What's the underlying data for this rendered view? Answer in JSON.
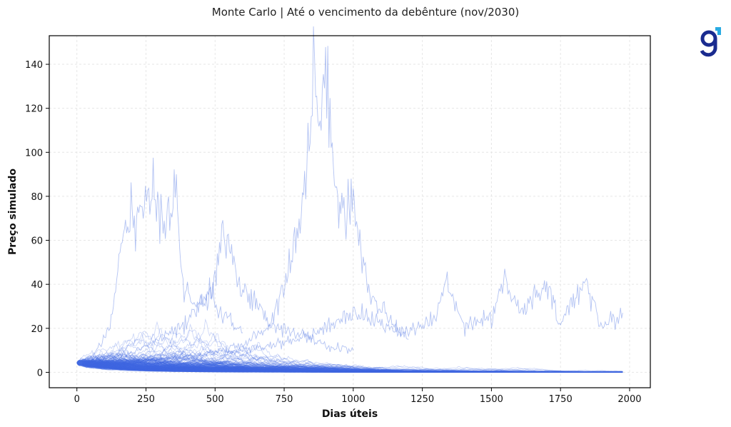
{
  "chart_data": {
    "type": "line",
    "title": "Monte Carlo | Até o vencimento da debênture (nov/2030)",
    "xlabel": "Dias úteis",
    "ylabel": "Preço simulado",
    "xlim": [
      -100,
      2075
    ],
    "ylim": [
      -7,
      153
    ],
    "xticks": [
      0,
      250,
      500,
      750,
      1000,
      1250,
      1500,
      1750,
      2000
    ],
    "yticks": [
      0,
      20,
      40,
      60,
      80,
      100,
      120,
      140
    ],
    "grid": true,
    "start_value": 4.3,
    "n_steps": 1975,
    "n_paths": 300,
    "line_color": "#4169e1",
    "series_note": "simulated price paths; highlighted peaks approximated from the figure",
    "highlight_paths": [
      {
        "x": [
          0,
          60,
          120,
          160,
          200,
          240,
          280,
          320,
          360,
          380,
          420,
          480,
          520,
          560,
          600
        ],
        "y": [
          4.3,
          8,
          20,
          55,
          75,
          70,
          80,
          70,
          85,
          40,
          30,
          35,
          28,
          22,
          18
        ]
      },
      {
        "x": [
          0,
          100,
          200,
          300,
          400,
          500,
          520,
          560,
          600,
          650,
          700,
          800,
          900,
          1000
        ],
        "y": [
          4.3,
          6,
          9,
          15,
          22,
          40,
          62,
          50,
          40,
          30,
          22,
          18,
          12,
          10
        ]
      },
      {
        "x": [
          0,
          200,
          400,
          600,
          700,
          760,
          800,
          840,
          860,
          880,
          900,
          920,
          940,
          970,
          1000,
          1020,
          1060,
          1100,
          1200
        ],
        "y": [
          4.3,
          5,
          7,
          12,
          22,
          45,
          66,
          100,
          145,
          110,
          135,
          105,
          90,
          70,
          84,
          60,
          35,
          28,
          15
        ]
      },
      {
        "x": [
          0,
          300,
          600,
          800,
          900,
          1000,
          1100,
          1200,
          1300,
          1340,
          1400,
          1500,
          1540,
          1600,
          1700,
          1750,
          1800,
          1840,
          1900,
          1975
        ],
        "y": [
          4.3,
          6,
          10,
          15,
          20,
          28,
          22,
          18,
          25,
          42,
          22,
          25,
          42,
          28,
          38,
          22,
          33,
          43,
          20,
          27
        ]
      }
    ]
  },
  "logo_text": "g"
}
